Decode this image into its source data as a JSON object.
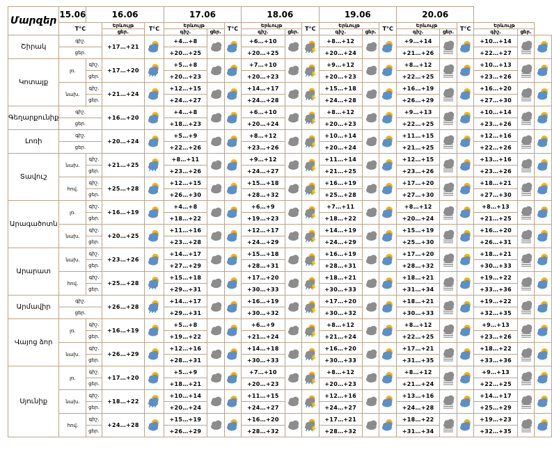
{
  "header": {
    "region_title": "Մարզեր",
    "temp_label": "T°C",
    "visual_label": "Երևույթ",
    "day_label": "ցեր.",
    "night_label": "գիշ.",
    "dates": [
      "15.06",
      "16.06",
      "17.06",
      "18.06",
      "19.06",
      "20.06"
    ]
  },
  "icon_legend": {
    "sun-cloud-icon": "partly cloudy",
    "cloud-icon": "cloudy",
    "sun-rain-icon": "sun with rain",
    "cloud-lightning-icon": "thunderstorm",
    "sun-cloud-rain-icon": "partly cloudy with rain",
    "cloud-rain-icon": "rain",
    "fog-icon": "fog",
    "moon-cloud-icon": "night cloudy"
  },
  "regions": [
    {
      "name": "Շիրակ",
      "subs": [
        {
          "name": "",
          "rows": [
            {
              "label": "գիշ.",
              "t": [
                "",
                "+4…+8",
                "+6…+10",
                "+8…+12",
                "+9…+14",
                "+10…+14"
              ]
            },
            {
              "label": "ցեր.",
              "t": [
                "+17…+21",
                "+20…+25",
                "+20…+25",
                "+20…+24",
                "+21…+26",
                "+22…+27"
              ]
            }
          ]
        }
      ]
    },
    {
      "name": "Կոտայք",
      "subs": [
        {
          "name": "լռ.",
          "rows": [
            {
              "label": "գիշ.",
              "t": [
                "",
                "+5…+8",
                "+7…+10",
                "+9…+12",
                "+8…+12",
                "+10…+13"
              ]
            },
            {
              "label": "ցեր.",
              "t": [
                "+17…+20",
                "+20…+23",
                "+20…+23",
                "+20…+23",
                "+22…+25",
                "+23…+26"
              ]
            }
          ]
        },
        {
          "name": "նախ.",
          "rows": [
            {
              "label": "գիշ.",
              "t": [
                "",
                "+12…+15",
                "+14…+17",
                "+15…+18",
                "+16…+19",
                "+16…+20"
              ]
            },
            {
              "label": "ցեր.",
              "t": [
                "+21…+24",
                "+24…+27",
                "+24…+28",
                "+24…+28",
                "+26…+29",
                "+27…+30"
              ]
            }
          ]
        }
      ]
    },
    {
      "name": "Գեղարքունիք",
      "subs": [
        {
          "name": "",
          "rows": [
            {
              "label": "գիշ.",
              "t": [
                "",
                "+4…+8",
                "+6…+10",
                "+8…+12",
                "+9…+13",
                "+10…+14"
              ]
            },
            {
              "label": "ցեր.",
              "t": [
                "+16…+20",
                "+18…+23",
                "+20…+24",
                "+20…+23",
                "+22…+25",
                "+23…+26"
              ]
            }
          ]
        }
      ]
    },
    {
      "name": "Լոռի",
      "subs": [
        {
          "name": "",
          "rows": [
            {
              "label": "գիշ.",
              "t": [
                "",
                "+5…+9",
                "+8…+12",
                "+10…+14",
                "+11…+15",
                "+12…+16"
              ]
            },
            {
              "label": "ցեր.",
              "t": [
                "+20…+24",
                "+22…+26",
                "+23…+26",
                "+20…+24",
                "+21…+25",
                "+22…+26"
              ]
            }
          ]
        }
      ]
    },
    {
      "name": "Տավուշ",
      "subs": [
        {
          "name": "նախ.",
          "rows": [
            {
              "label": "գիշ.",
              "t": [
                "",
                "+8…+11",
                "+9…+12",
                "+11…+14",
                "+12…+15",
                "+13…+16"
              ]
            },
            {
              "label": "ցեր.",
              "t": [
                "+21…+25",
                "+23…+26",
                "+24…+27",
                "+21…+25",
                "+23…+26",
                "+23…+26"
              ]
            }
          ]
        },
        {
          "name": "հով.",
          "rows": [
            {
              "label": "գիշ.",
              "t": [
                "",
                "+12…+15",
                "+15…+18",
                "+16…+19",
                "+17…+20",
                "+18…+21"
              ]
            },
            {
              "label": "ցեր.",
              "t": [
                "+25…+28",
                "+26…+30",
                "+28…+32",
                "+25…+28",
                "+27…+30",
                "+27…+30"
              ]
            }
          ]
        }
      ]
    },
    {
      "name": "Արագածոտն",
      "subs": [
        {
          "name": "լռ.",
          "rows": [
            {
              "label": "գիշ.",
              "t": [
                "",
                "+4…+8",
                "+6…+9",
                "+7…+11",
                "+8…+12",
                "+8…+13"
              ]
            },
            {
              "label": "ցեր.",
              "t": [
                "+16…+19",
                "+18…+22",
                "+19…+23",
                "+18…+22",
                "+20…+24",
                "+21…+25"
              ]
            }
          ]
        },
        {
          "name": "նախ.",
          "rows": [
            {
              "label": "գիշ.",
              "t": [
                "",
                "+11…+16",
                "+12…+17",
                "+14…+19",
                "+15…+19",
                "+16…+20"
              ]
            },
            {
              "label": "ցեր.",
              "t": [
                "+20…+25",
                "+23…+28",
                "+24…+29",
                "+24…+29",
                "+25…+30",
                "+26…+31"
              ]
            }
          ]
        }
      ]
    },
    {
      "name": "Արարատ",
      "subs": [
        {
          "name": "նախ.",
          "rows": [
            {
              "label": "գիշ.",
              "t": [
                "",
                "+14…+17",
                "+15…+18",
                "+16…+19",
                "+17…+20",
                "+18…+21"
              ]
            },
            {
              "label": "ցեր.",
              "t": [
                "+23…+26",
                "+27…+29",
                "+28…+31",
                "+28…+31",
                "+28…+32",
                "+30…+33"
              ]
            }
          ]
        },
        {
          "name": "հով.",
          "rows": [
            {
              "label": "գիշ.",
              "t": [
                "",
                "+15…+18",
                "+17…+20",
                "+18…+21",
                "+18…+21",
                "+19…+22"
              ]
            },
            {
              "label": "ցեր.",
              "t": [
                "+25…+28",
                "+29…+31",
                "+30…+33",
                "+30…+33",
                "+31…+34",
                "+33…+36"
              ]
            }
          ]
        }
      ]
    },
    {
      "name": "Արմավիր",
      "subs": [
        {
          "name": "",
          "rows": [
            {
              "label": "գիշ.",
              "t": [
                "",
                "+14…+17",
                "+16…+19",
                "+17…+20",
                "+18…+21",
                "+19…+22"
              ]
            },
            {
              "label": "ցեր.",
              "t": [
                "+26…+28",
                "+29…+31",
                "+30…+32",
                "+30…+32",
                "+30…+33",
                "+32…+35"
              ]
            }
          ]
        }
      ]
    },
    {
      "name": "Վայոց ձոր",
      "subs": [
        {
          "name": "լռ.",
          "rows": [
            {
              "label": "գիշ.",
              "t": [
                "",
                "+5…+8",
                "+6…+9",
                "+8…+12",
                "+8…+12",
                "+9…+13"
              ]
            },
            {
              "label": "ցեր.",
              "t": [
                "+16…+19",
                "+19…+22",
                "+21…+24",
                "+21…+24",
                "+22…+25",
                "+23…+26"
              ]
            }
          ]
        },
        {
          "name": "նախ.",
          "rows": [
            {
              "label": "գիշ.",
              "t": [
                "",
                "+12…+16",
                "+14…+18",
                "+16…+20",
                "+17…+21",
                "+18…+22"
              ]
            },
            {
              "label": "ցեր.",
              "t": [
                "+26…+29",
                "+28…+31",
                "+30…+33",
                "+30…+33",
                "+31…+35",
                "+33…+36"
              ]
            }
          ]
        }
      ]
    },
    {
      "name": "Սյունիք",
      "subs": [
        {
          "name": "լռ.",
          "rows": [
            {
              "label": "գիշ.",
              "t": [
                "",
                "+5…+9",
                "+7…+10",
                "+8…+12",
                "+8…+12",
                "+9…+13"
              ]
            },
            {
              "label": "ցեր.",
              "t": [
                "+17…+20",
                "+18…+21",
                "+20…+23",
                "+20…+23",
                "+21…+24",
                "+22…+25"
              ]
            }
          ]
        },
        {
          "name": "նախ.",
          "rows": [
            {
              "label": "գիշ.",
              "t": [
                "",
                "+10…+14",
                "+11…+15",
                "+12…+16",
                "+13…+16",
                "+14…+17"
              ]
            },
            {
              "label": "ցեր.",
              "t": [
                "+18…+22",
                "+20…+24",
                "+24…+27",
                "+24…+27",
                "+24…+28",
                "+25…+29"
              ]
            }
          ]
        },
        {
          "name": "հով.",
          "rows": [
            {
              "label": "գիշ.",
              "t": [
                "",
                "+15…+19",
                "+16…+20",
                "+17…+21",
                "+18…+22",
                "+19…+23"
              ]
            },
            {
              "label": "ցեր.",
              "t": [
                "+24…+28",
                "+26…+29",
                "+28…+32",
                "+28…+32",
                "+31…+34",
                "+32…+35"
              ]
            }
          ]
        }
      ]
    }
  ]
}
